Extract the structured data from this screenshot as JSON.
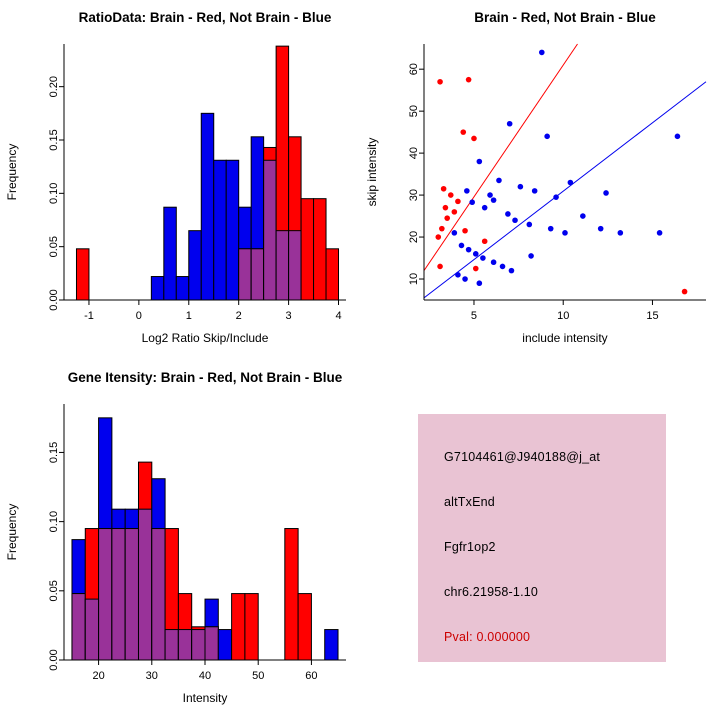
{
  "figure": {
    "background": "#FFFFFF"
  },
  "colors": {
    "red": "#FF0000",
    "blue": "#0000EE",
    "purple": "#993299",
    "axis": "#000000"
  },
  "chart_data": [
    {
      "id": "ratio_histogram",
      "type": "bar",
      "subtype": "overlapping-histogram",
      "title": "RatioData: Brain - Red, Not Brain - Blue",
      "xlabel": "Log2 Ratio Skip/Include",
      "ylabel": "Frequency",
      "xlim": [
        -1.5,
        4.15
      ],
      "ylim": [
        0,
        0.24
      ],
      "xtick_values": [
        -1,
        0,
        1,
        2,
        3,
        4
      ],
      "xtick_labels": [
        "-1",
        "0",
        "1",
        "2",
        "3",
        "4"
      ],
      "ytick_values": [
        0,
        0.05,
        0.1,
        0.15,
        0.2
      ],
      "ytick_labels": [
        "0.00",
        "0.05",
        "0.10",
        "0.15",
        "0.20"
      ],
      "bin_start": -1.25,
      "bin_width": 0.25,
      "series": [
        {
          "name": "Not Brain",
          "color": "blue",
          "values": [
            0,
            0,
            0,
            0,
            0,
            0,
            0.022,
            0.087,
            0.022,
            0.065,
            0.175,
            0.131,
            0.131,
            0.087,
            0.153,
            0.131,
            0.065,
            0.065,
            0,
            0,
            0
          ]
        },
        {
          "name": "Brain",
          "color": "red",
          "values": [
            0.048,
            0,
            0,
            0,
            0,
            0,
            0,
            0,
            0,
            0,
            0,
            0,
            0,
            0.048,
            0.048,
            0.143,
            0.238,
            0.153,
            0.095,
            0.095,
            0.048
          ]
        }
      ],
      "overlap_color": "purple",
      "grid": false
    },
    {
      "id": "intensity_scatter",
      "type": "scatter",
      "title": "Brain - Red, Not Brain - Blue",
      "xlabel": "include intensity",
      "ylabel": "skip intensity",
      "xlim": [
        2.2,
        18
      ],
      "ylim": [
        5,
        66
      ],
      "xtick_values": [
        5,
        10,
        15
      ],
      "xtick_labels": [
        "5",
        "10",
        "15"
      ],
      "ytick_values": [
        10,
        20,
        30,
        40,
        50,
        60
      ],
      "ytick_labels": [
        "10",
        "20",
        "30",
        "40",
        "50",
        "60"
      ],
      "series": [
        {
          "name": "Brain",
          "color": "red",
          "line": [
            [
              2.2,
              12
            ],
            [
              10.8,
              66
            ]
          ],
          "points": [
            [
              3.1,
              57
            ],
            [
              4.7,
              57.5
            ],
            [
              4.4,
              45
            ],
            [
              5.0,
              43.5
            ],
            [
              3.3,
              31.5
            ],
            [
              3.7,
              30
            ],
            [
              4.1,
              28.5
            ],
            [
              3.4,
              27
            ],
            [
              3.9,
              26
            ],
            [
              3.5,
              24.5
            ],
            [
              3.2,
              22
            ],
            [
              4.5,
              21.5
            ],
            [
              3.0,
              20
            ],
            [
              5.6,
              19
            ],
            [
              3.1,
              13
            ],
            [
              5.1,
              12.5
            ],
            [
              16.8,
              7
            ]
          ]
        },
        {
          "name": "Not Brain",
          "color": "blue",
          "line": [
            [
              2.2,
              5.5
            ],
            [
              18,
              57
            ]
          ],
          "points": [
            [
              8.8,
              64
            ],
            [
              7.0,
              47
            ],
            [
              9.1,
              44
            ],
            [
              16.4,
              44
            ],
            [
              5.3,
              38
            ],
            [
              6.4,
              33.5
            ],
            [
              10.4,
              33
            ],
            [
              12.4,
              30.5
            ],
            [
              7.6,
              32
            ],
            [
              8.4,
              31
            ],
            [
              4.6,
              31
            ],
            [
              5.9,
              30
            ],
            [
              9.6,
              29.5
            ],
            [
              6.1,
              28.8
            ],
            [
              4.9,
              28.3
            ],
            [
              5.6,
              27
            ],
            [
              6.9,
              25.5
            ],
            [
              11.1,
              25
            ],
            [
              7.3,
              24
            ],
            [
              8.1,
              23
            ],
            [
              9.3,
              22
            ],
            [
              12.1,
              22
            ],
            [
              3.9,
              21
            ],
            [
              10.1,
              21
            ],
            [
              13.2,
              21
            ],
            [
              15.4,
              21
            ],
            [
              4.3,
              18
            ],
            [
              4.7,
              17
            ],
            [
              5.1,
              16
            ],
            [
              8.2,
              15.5
            ],
            [
              5.5,
              15
            ],
            [
              6.1,
              14
            ],
            [
              6.6,
              13
            ],
            [
              7.1,
              12
            ],
            [
              4.1,
              11
            ],
            [
              4.5,
              10
            ],
            [
              5.3,
              9
            ]
          ]
        }
      ],
      "grid": false
    },
    {
      "id": "gene_intensity_histogram",
      "type": "bar",
      "subtype": "overlapping-histogram",
      "title": "Gene Itensity: Brain - Red, Not Brain - Blue",
      "xlabel": "Intensity",
      "ylabel": "Frequency",
      "xlim": [
        13.5,
        66.5
      ],
      "ylim": [
        0,
        0.185
      ],
      "xtick_values": [
        20,
        30,
        40,
        50,
        60
      ],
      "xtick_labels": [
        "20",
        "30",
        "40",
        "50",
        "60"
      ],
      "ytick_values": [
        0,
        0.05,
        0.1,
        0.15
      ],
      "ytick_labels": [
        "0.00",
        "0.05",
        "0.10",
        "0.15"
      ],
      "bin_start": 15,
      "bin_width": 2.5,
      "series": [
        {
          "name": "Not Brain",
          "color": "blue",
          "values": [
            0.087,
            0.044,
            0.175,
            0.109,
            0.109,
            0.109,
            0.131,
            0.022,
            0.022,
            0.022,
            0.044,
            0.022,
            0,
            0,
            0,
            0,
            0,
            0,
            0,
            0.022
          ]
        },
        {
          "name": "Brain",
          "color": "red",
          "values": [
            0.048,
            0.095,
            0.095,
            0.095,
            0.095,
            0.143,
            0.095,
            0.095,
            0.048,
            0.024,
            0.024,
            0,
            0.048,
            0.048,
            0,
            0,
            0.095,
            0.048,
            0,
            0
          ]
        }
      ],
      "overlap_color": "purple",
      "grid": false
    },
    {
      "id": "gene_info_box",
      "type": "table",
      "bg": "#E9C3D3",
      "lines": [
        "G7104461@J940188@j_at",
        "altTxEnd",
        "Fgfr1op2",
        "chr6.21958-1.10",
        "Pval: 0.000000"
      ],
      "line_colors": [
        "#000000",
        "#000000",
        "#000000",
        "#000000",
        "#CC0000"
      ]
    }
  ]
}
